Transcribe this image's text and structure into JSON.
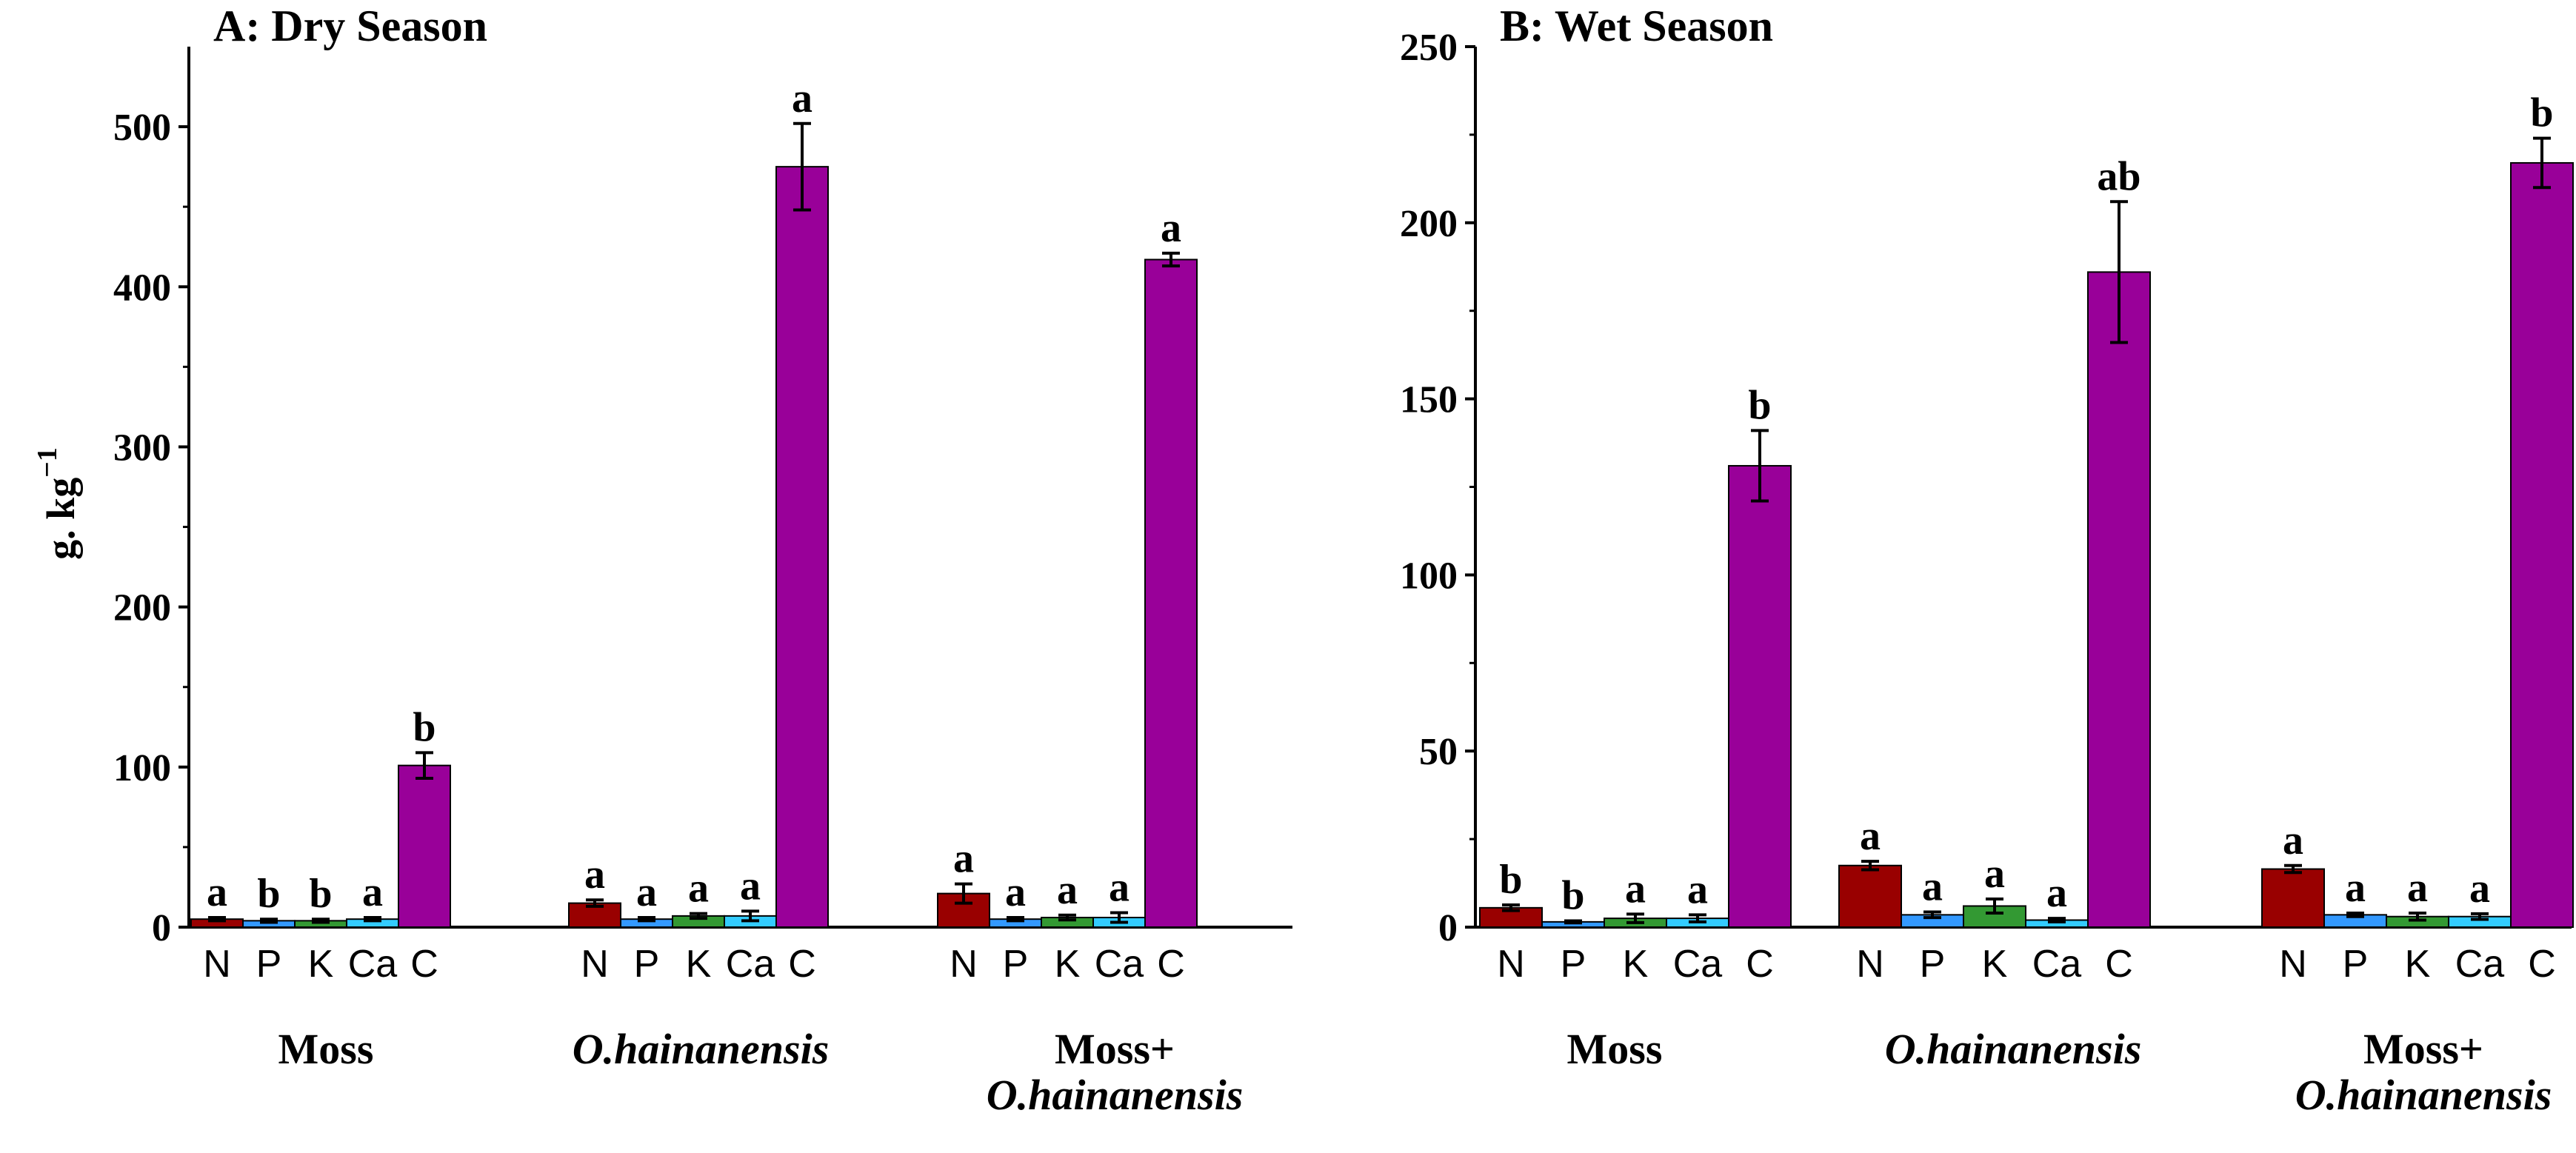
{
  "ylabel": "g. kg",
  "ylabel_superscript": "−1",
  "colors": {
    "N": "#990000",
    "P": "#3399ff",
    "K": "#339933",
    "Ca": "#33ccff",
    "C": "#990099"
  },
  "chart_data": [
    {
      "type": "bar",
      "title": "A: Dry Season",
      "ylim": [
        0,
        550
      ],
      "yticks": [
        0,
        100,
        200,
        300,
        400,
        500
      ],
      "ytick_labels": [
        "0",
        "100",
        "200",
        "300",
        "400",
        "500"
      ],
      "categories": [
        "N",
        "P",
        "K",
        "Ca",
        "C"
      ],
      "groups": [
        {
          "label_lines": [
            "Moss"
          ],
          "italic": [
            false
          ],
          "values": [
            5,
            4,
            4,
            5,
            101
          ],
          "errors": [
            1,
            1,
            1,
            1,
            8
          ],
          "letters": [
            "a",
            "b",
            "b",
            "a",
            "b"
          ]
        },
        {
          "label_lines": [
            "O.hainanensis"
          ],
          "italic": [
            true
          ],
          "values": [
            15,
            5,
            7,
            7,
            475
          ],
          "errors": [
            2,
            1,
            1.5,
            3,
            27
          ],
          "letters": [
            "a",
            "a",
            "a",
            "a",
            "a"
          ]
        },
        {
          "label_lines": [
            "Moss+",
            "O.hainanensis"
          ],
          "italic": [
            false,
            true
          ],
          "values": [
            21,
            5,
            6,
            6,
            417
          ],
          "errors": [
            6,
            1,
            1.5,
            3,
            4
          ],
          "letters": [
            "a",
            "a",
            "a",
            "a",
            "a"
          ]
        }
      ]
    },
    {
      "type": "bar",
      "title": "B: Wet Season",
      "ylim": [
        0,
        250
      ],
      "yticks": [
        0,
        50,
        100,
        150,
        200,
        250
      ],
      "ytick_labels": [
        "0",
        "50",
        "100",
        "150",
        "200",
        "250"
      ],
      "categories": [
        "N",
        "P",
        "K",
        "Ca",
        "C"
      ],
      "groups": [
        {
          "label_lines": [
            "Moss"
          ],
          "italic": [
            false
          ],
          "values": [
            5.5,
            1.5,
            2.5,
            2.5,
            131
          ],
          "errors": [
            0.8,
            0.3,
            1.2,
            1,
            10
          ],
          "letters": [
            "b",
            "b",
            "a",
            "a",
            "b"
          ]
        },
        {
          "label_lines": [
            "O.hainanensis"
          ],
          "italic": [
            true
          ],
          "values": [
            17.5,
            3.5,
            6,
            2,
            186
          ],
          "errors": [
            1.2,
            0.8,
            2,
            0.5,
            20
          ],
          "letters": [
            "a",
            "a",
            "a",
            "a",
            "ab"
          ]
        },
        {
          "label_lines": [
            "Moss+",
            "O.hainanensis"
          ],
          "italic": [
            false,
            true
          ],
          "values": [
            16.5,
            3.5,
            3,
            3,
            217
          ],
          "errors": [
            1,
            0.5,
            1,
            0.8,
            7
          ],
          "letters": [
            "a",
            "a",
            "a",
            "a",
            "b"
          ]
        }
      ]
    }
  ]
}
